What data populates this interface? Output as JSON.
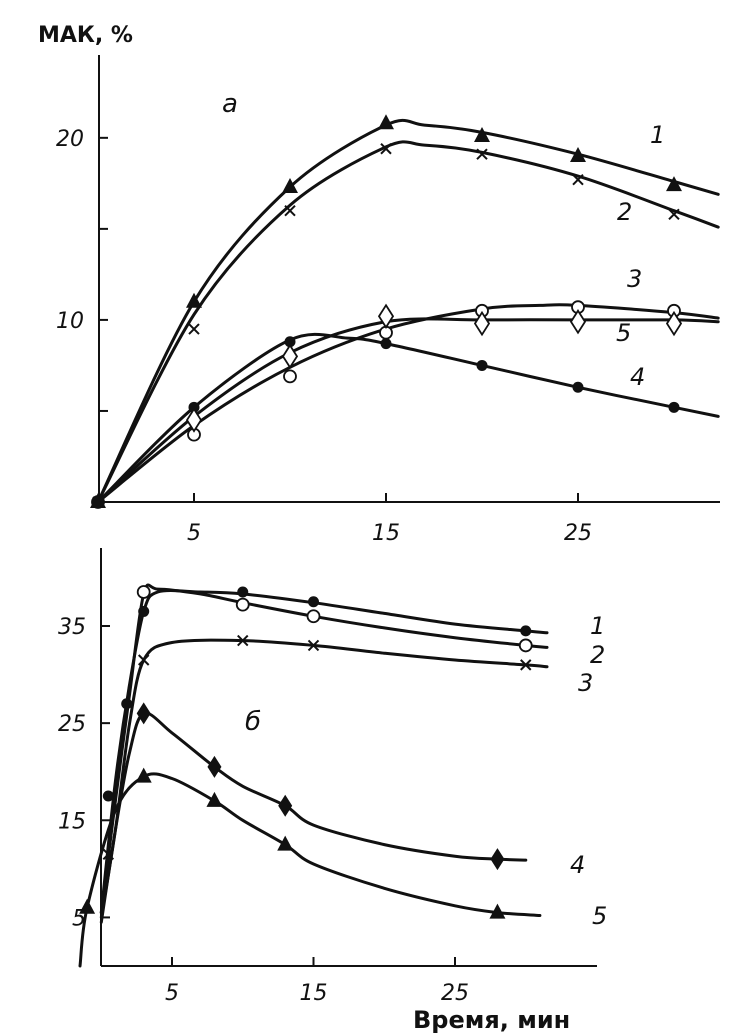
{
  "chart_data": [
    {
      "type": "line",
      "panel": "a",
      "ylabel": "МАК, %",
      "xlabel": "",
      "xlim": [
        0,
        32.5
      ],
      "ylim": [
        0,
        24
      ],
      "xticks": [
        5,
        15,
        25
      ],
      "yticks": [
        5,
        10,
        15,
        20
      ],
      "ytick_labels": [
        "",
        "10",
        "",
        "20"
      ],
      "grid": false,
      "series": [
        {
          "name": "1",
          "marker": "triangle",
          "points": [
            [
              0,
              0
            ],
            [
              5,
              11
            ],
            [
              10,
              17.3
            ],
            [
              15,
              20.8
            ],
            [
              20,
              20.1
            ],
            [
              25,
              19
            ],
            [
              30,
              17.4
            ]
          ],
          "curve": [
            [
              0,
              0
            ],
            [
              5,
              11
            ],
            [
              10,
              17.3
            ],
            [
              15,
              20.7
            ],
            [
              17,
              20.7
            ],
            [
              20,
              20.3
            ],
            [
              25,
              19.1
            ],
            [
              30,
              17.6
            ],
            [
              32.3,
              16.9
            ]
          ]
        },
        {
          "name": "2",
          "marker": "cross",
          "points": [
            [
              0,
              0
            ],
            [
              5,
              9.5
            ],
            [
              10,
              16
            ],
            [
              15,
              19.4
            ],
            [
              20,
              19.1
            ],
            [
              25,
              17.7
            ],
            [
              30,
              15.8
            ]
          ],
          "curve": [
            [
              0,
              0
            ],
            [
              5,
              10.3
            ],
            [
              10,
              16.3
            ],
            [
              15,
              19.5
            ],
            [
              17,
              19.6
            ],
            [
              20,
              19.2
            ],
            [
              25,
              17.9
            ],
            [
              30,
              16
            ],
            [
              32.3,
              15.1
            ]
          ]
        },
        {
          "name": "3",
          "marker": "circle-open",
          "points": [
            [
              0,
              0
            ],
            [
              5,
              3.7
            ],
            [
              10,
              6.9
            ],
            [
              15,
              9.3
            ],
            [
              20,
              10.5
            ],
            [
              25,
              10.7
            ],
            [
              30,
              10.5
            ]
          ],
          "curve": [
            [
              0,
              0
            ],
            [
              5,
              4.2
            ],
            [
              10,
              7.4
            ],
            [
              15,
              9.5
            ],
            [
              20,
              10.6
            ],
            [
              23,
              10.8
            ],
            [
              25,
              10.8
            ],
            [
              30,
              10.4
            ],
            [
              32.3,
              10.1
            ]
          ]
        },
        {
          "name": "4",
          "marker": "circle-filled",
          "points": [
            [
              0,
              0
            ],
            [
              5,
              5.2
            ],
            [
              10,
              8.8
            ],
            [
              15,
              8.7
            ],
            [
              20,
              7.5
            ],
            [
              25,
              6.3
            ],
            [
              30,
              5.2
            ]
          ],
          "curve": [
            [
              0,
              0
            ],
            [
              5,
              5.2
            ],
            [
              10,
              8.9
            ],
            [
              13,
              9.0
            ],
            [
              15,
              8.7
            ],
            [
              20,
              7.5
            ],
            [
              25,
              6.3
            ],
            [
              30,
              5.2
            ],
            [
              32.3,
              4.7
            ]
          ]
        },
        {
          "name": "5",
          "marker": "diamond-open",
          "points": [
            [
              5,
              4.5
            ],
            [
              10,
              8
            ],
            [
              15,
              10.2
            ],
            [
              20,
              9.8
            ],
            [
              25,
              9.9
            ],
            [
              30,
              9.8
            ]
          ],
          "curve": [
            [
              0,
              0
            ],
            [
              5,
              4.7
            ],
            [
              10,
              8.2
            ],
            [
              15,
              9.9
            ],
            [
              20,
              10
            ],
            [
              25,
              10
            ],
            [
              30,
              10
            ],
            [
              32.3,
              9.9
            ]
          ]
        }
      ]
    },
    {
      "type": "line",
      "panel": "б",
      "xlabel": "Время, мин",
      "ylabel": "",
      "xlim": [
        -1.8,
        33
      ],
      "ylim": [
        0,
        42
      ],
      "xticks": [
        5,
        15,
        25
      ],
      "yticks": [
        5,
        15,
        25,
        35
      ],
      "grid": false,
      "series": [
        {
          "name": "1",
          "marker": "circle-filled",
          "points": [
            [
              0.5,
              17.5
            ],
            [
              1.8,
              27
            ],
            [
              3,
              36.5
            ],
            [
              10,
              38.5
            ],
            [
              15,
              37.5
            ],
            [
              30,
              34.5
            ]
          ],
          "curve": [
            [
              0,
              5.5
            ],
            [
              1,
              19
            ],
            [
              2,
              29
            ],
            [
              3,
              36.5
            ],
            [
              4,
              38.5
            ],
            [
              7,
              38.5
            ],
            [
              10,
              38.3
            ],
            [
              15,
              37.4
            ],
            [
              20,
              36.3
            ],
            [
              25,
              35.2
            ],
            [
              30,
              34.5
            ],
            [
              31.5,
              34.3
            ]
          ]
        },
        {
          "name": "2",
          "marker": "circle-open",
          "points": [
            [
              3,
              38.5
            ],
            [
              10,
              37.2
            ],
            [
              15,
              36
            ],
            [
              30,
              33
            ]
          ],
          "curve": [
            [
              0,
              5.5
            ],
            [
              1,
              17
            ],
            [
              2,
              28
            ],
            [
              3,
              38.3
            ],
            [
              4,
              38.8
            ],
            [
              7,
              38.3
            ],
            [
              10,
              37.4
            ],
            [
              15,
              36
            ],
            [
              20,
              34.8
            ],
            [
              25,
              33.8
            ],
            [
              30,
              33
            ],
            [
              31.5,
              32.8
            ]
          ]
        },
        {
          "name": "3",
          "marker": "cross",
          "points": [
            [
              0.5,
              11.5
            ],
            [
              3,
              31.5
            ],
            [
              10,
              33.5
            ],
            [
              15,
              33
            ],
            [
              30,
              31
            ]
          ],
          "curve": [
            [
              0,
              5
            ],
            [
              1,
              14
            ],
            [
              2,
              25
            ],
            [
              3,
              31.5
            ],
            [
              5,
              33.3
            ],
            [
              10,
              33.5
            ],
            [
              15,
              33
            ],
            [
              20,
              32.2
            ],
            [
              25,
              31.5
            ],
            [
              30,
              31
            ],
            [
              31.5,
              30.8
            ]
          ]
        },
        {
          "name": "4",
          "marker": "diamond-filled",
          "points": [
            [
              3,
              26
            ],
            [
              8,
              20.5
            ],
            [
              13,
              16.5
            ],
            [
              28,
              11
            ]
          ],
          "curve": [
            [
              0,
              4.5
            ],
            [
              1,
              14
            ],
            [
              2,
              22
            ],
            [
              3,
              26
            ],
            [
              5,
              24
            ],
            [
              8,
              20.5
            ],
            [
              10,
              18.5
            ],
            [
              13,
              16.5
            ],
            [
              15,
              14.5
            ],
            [
              20,
              12.5
            ],
            [
              25,
              11.3
            ],
            [
              28,
              11
            ],
            [
              30,
              10.9
            ]
          ]
        },
        {
          "name": "5",
          "marker": "triangle",
          "points": [
            [
              -1,
              6
            ],
            [
              3,
              19.5
            ],
            [
              8,
              17
            ],
            [
              13,
              12.5
            ],
            [
              28,
              5.5
            ]
          ],
          "curve": [
            [
              -1.5,
              0
            ],
            [
              -1,
              6
            ],
            [
              1,
              16
            ],
            [
              3,
              19.5
            ],
            [
              5,
              19.3
            ],
            [
              8,
              17
            ],
            [
              10,
              15
            ],
            [
              13,
              12.5
            ],
            [
              15,
              10.5
            ],
            [
              20,
              8
            ],
            [
              25,
              6.2
            ],
            [
              28,
              5.5
            ],
            [
              31,
              5.2
            ]
          ]
        }
      ]
    }
  ]
}
